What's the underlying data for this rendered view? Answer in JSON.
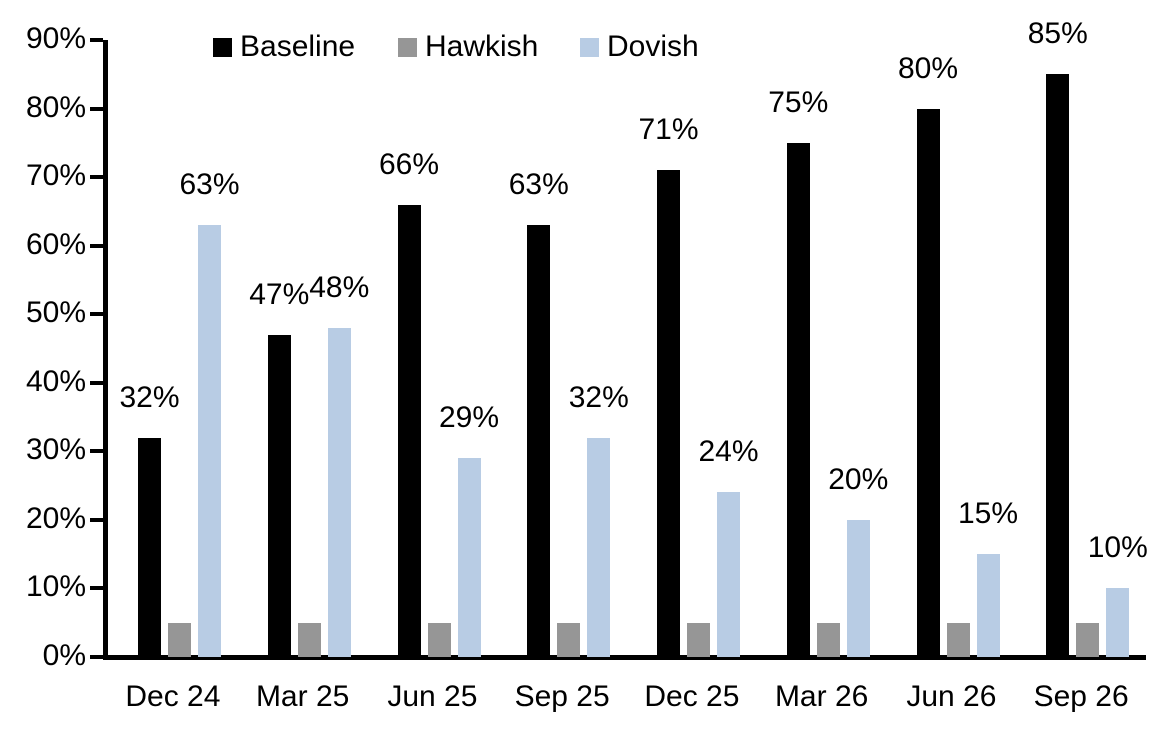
{
  "chart_data": {
    "type": "bar",
    "title": "",
    "xlabel": "",
    "ylabel": "",
    "categories": [
      "Dec 24",
      "Mar 25",
      "Jun 25",
      "Sep 25",
      "Dec 25",
      "Mar 26",
      "Jun 26",
      "Sep 26"
    ],
    "series": [
      {
        "name": "Baseline",
        "color": "#000000",
        "values": [
          32,
          47,
          66,
          63,
          71,
          75,
          80,
          85
        ],
        "data_labels": [
          "32%",
          "47%",
          "66%",
          "63%",
          "71%",
          "75%",
          "80%",
          "85%"
        ],
        "show_labels": true
      },
      {
        "name": "Hawkish",
        "color": "#969696",
        "values": [
          5,
          5,
          5,
          5,
          5,
          5,
          5,
          5
        ],
        "data_labels": [],
        "show_labels": false
      },
      {
        "name": "Dovish",
        "color": "#b8cce4",
        "values": [
          63,
          48,
          29,
          32,
          24,
          20,
          15,
          10
        ],
        "data_labels": [
          "63%",
          "48%",
          "29%",
          "32%",
          "24%",
          "20%",
          "15%",
          "10%"
        ],
        "show_labels": true
      }
    ],
    "ylim": [
      0,
      90
    ],
    "ytick_step": 10,
    "ytick_labels": [
      "0%",
      "10%",
      "20%",
      "30%",
      "40%",
      "50%",
      "60%",
      "70%",
      "80%",
      "90%"
    ],
    "grid": false,
    "legend_position": "top",
    "axis_color": "#000000",
    "background_color": "#ffffff"
  }
}
